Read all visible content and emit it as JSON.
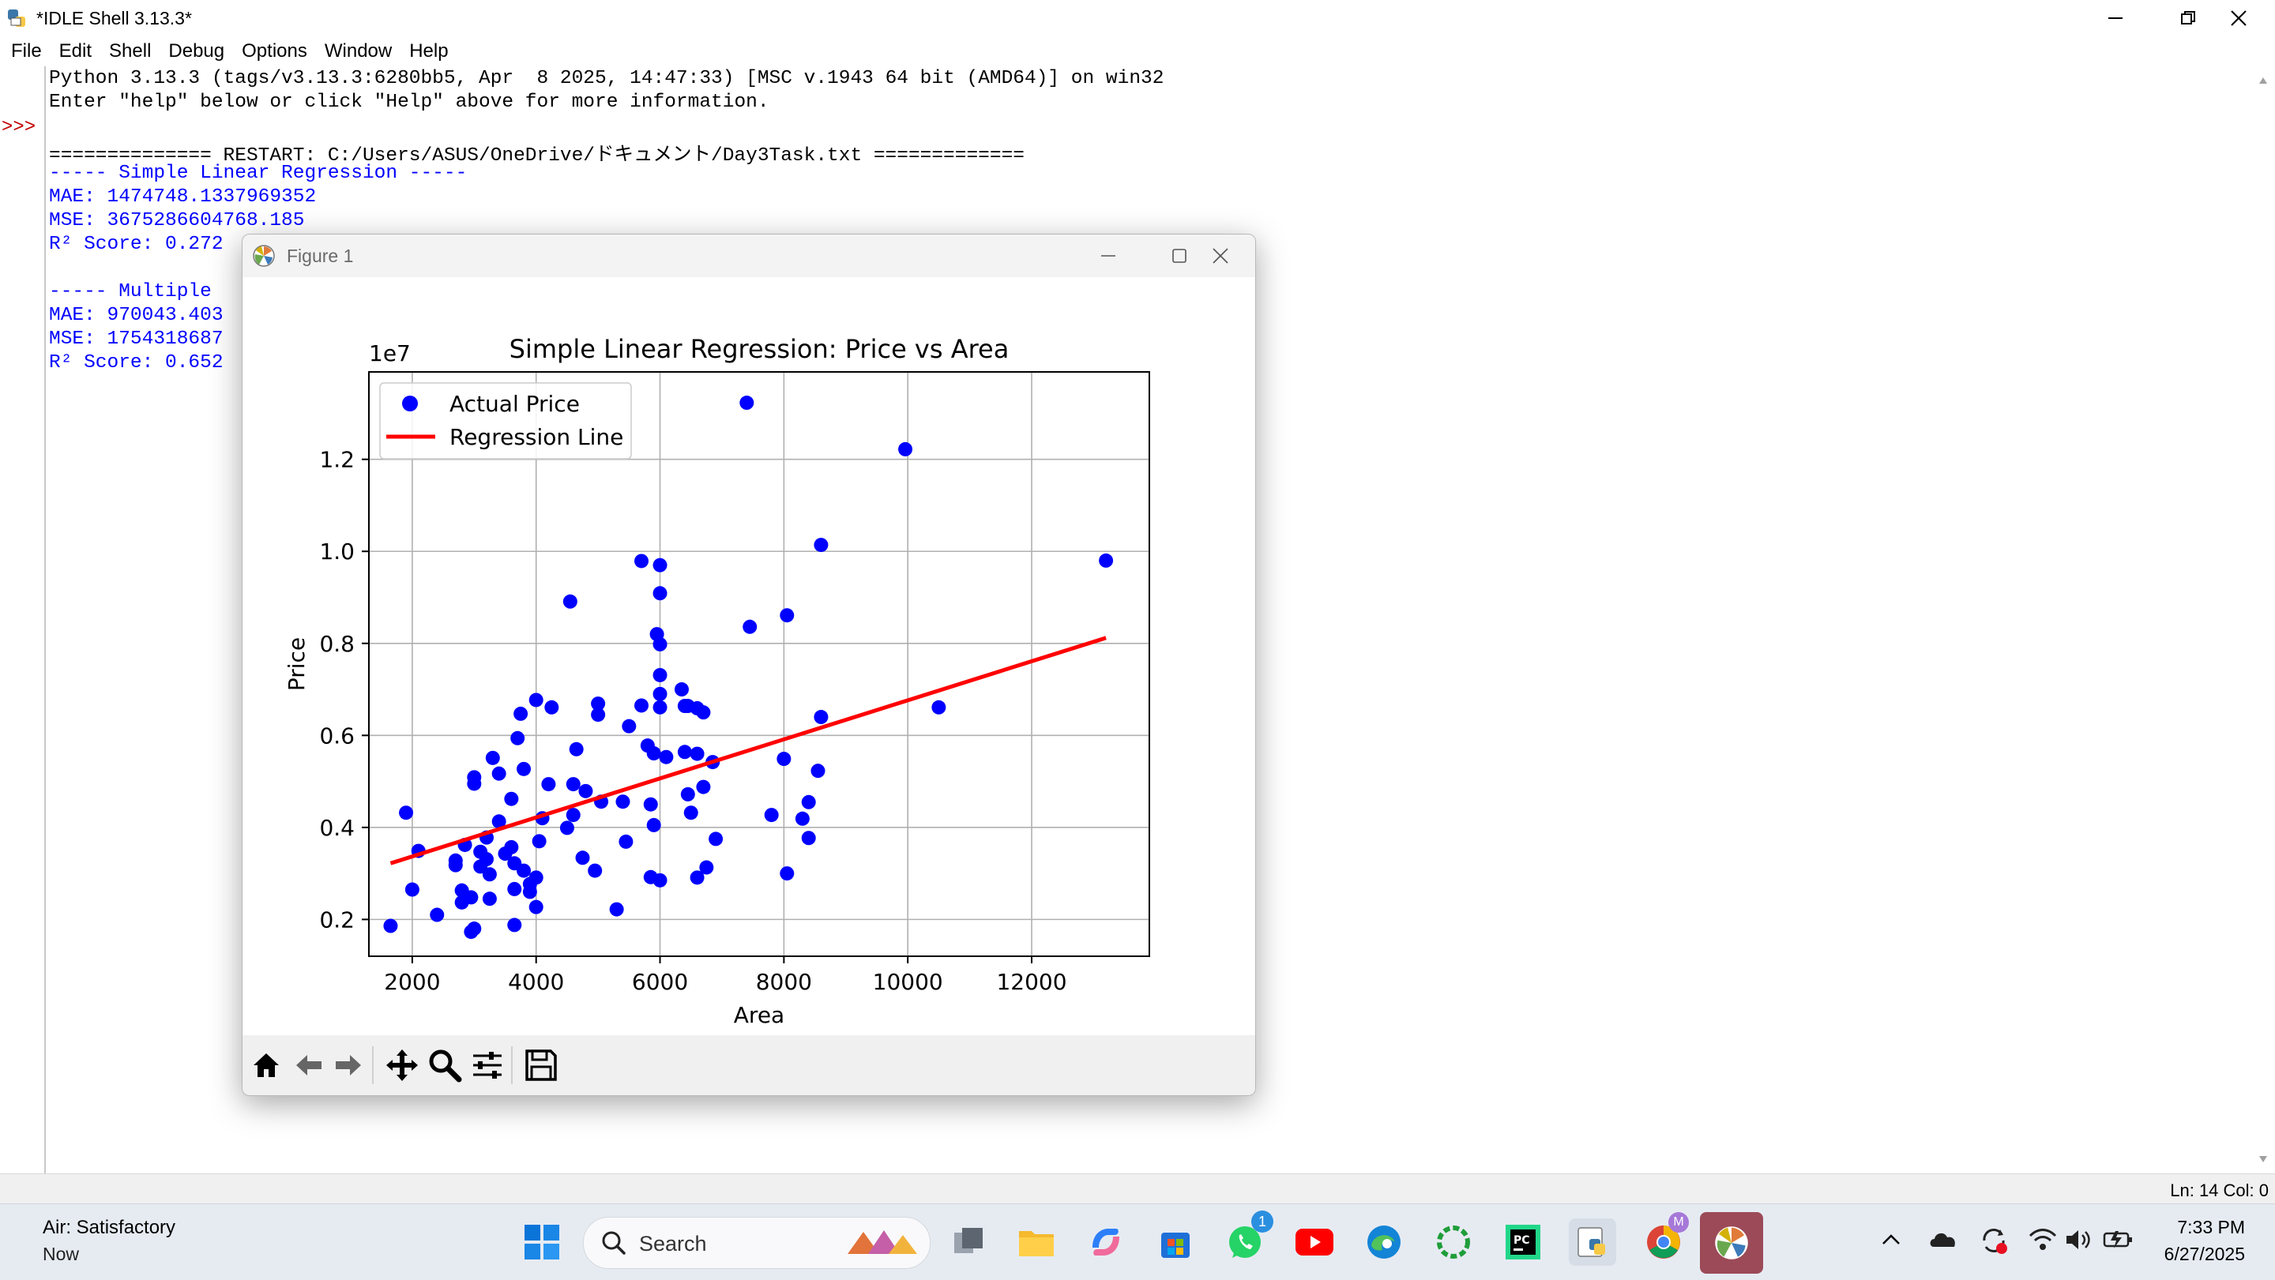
{
  "window": {
    "title": "*IDLE Shell 3.13.3*"
  },
  "menu": [
    "File",
    "Edit",
    "Shell",
    "Debug",
    "Options",
    "Window",
    "Help"
  ],
  "shell": {
    "prompt": ">>>",
    "lines": [
      "Python 3.13.3 (tags/v3.13.3:6280bb5, Apr  8 2025, 14:47:33) [MSC v.1943 64 bit (AMD64)] on win32",
      "Enter \"help\" below or click \"Help\" above for more information.",
      "============== RESTART: C:/Users/ASUS/OneDrive/ドキュメント/Day3Task.txt =============",
      "----- Simple Linear Regression -----",
      "MAE: 1474748.1337969352",
      "MSE: 3675286604768.185",
      "R² Score: 0.272",
      "----- Multiple ",
      "MAE: 970043.403",
      "MSE: 1754318687",
      "R² Score: 0.652"
    ]
  },
  "status": {
    "position": "Ln: 14  Col: 0"
  },
  "figure": {
    "title": "Figure 1",
    "toolbar": [
      "home-icon",
      "back-icon",
      "forward-icon",
      "pan-icon",
      "zoom-icon",
      "configure-subplots-icon",
      "save-icon"
    ]
  },
  "chart_data": {
    "type": "scatter",
    "title": "Simple Linear Regression: Price vs Area",
    "xlabel": "Area",
    "ylabel": "Price",
    "y_offset_label": "1e7",
    "xlim": [
      1300,
      13900
    ],
    "ylim": [
      0.12,
      1.39
    ],
    "xticks": [
      2000,
      4000,
      6000,
      8000,
      10000,
      12000
    ],
    "xtick_labels": [
      "2000",
      "4000",
      "6000",
      "8000",
      "10000",
      "12000"
    ],
    "yticks": [
      0.2,
      0.4,
      0.6,
      0.8,
      1.0,
      1.2
    ],
    "ytick_labels": [
      "0.2",
      "0.4",
      "0.6",
      "0.8",
      "1.0",
      "1.2"
    ],
    "grid": true,
    "legend_position": "upper-left",
    "series": [
      {
        "name": "Actual Price",
        "kind": "scatter",
        "color": "#0000ff",
        "points": [
          [
            1650,
            0.186
          ],
          [
            1900,
            0.432
          ],
          [
            2000,
            0.265
          ],
          [
            2100,
            0.349
          ],
          [
            2400,
            0.21
          ],
          [
            2700,
            0.328
          ],
          [
            2700,
            0.318
          ],
          [
            2800,
            0.263
          ],
          [
            2800,
            0.237
          ],
          [
            2850,
            0.362
          ],
          [
            2950,
            0.173
          ],
          [
            2950,
            0.248
          ],
          [
            3000,
            0.495
          ],
          [
            3000,
            0.509
          ],
          [
            3000,
            0.18
          ],
          [
            3100,
            0.347
          ],
          [
            3100,
            0.315
          ],
          [
            3200,
            0.378
          ],
          [
            3200,
            0.331
          ],
          [
            3250,
            0.298
          ],
          [
            3250,
            0.245
          ],
          [
            3300,
            0.551
          ],
          [
            3400,
            0.517
          ],
          [
            3400,
            0.413
          ],
          [
            3500,
            0.343
          ],
          [
            3600,
            0.462
          ],
          [
            3600,
            0.357
          ],
          [
            3650,
            0.322
          ],
          [
            3650,
            0.266
          ],
          [
            3650,
            0.188
          ],
          [
            3700,
            0.594
          ],
          [
            3750,
            0.647
          ],
          [
            3800,
            0.527
          ],
          [
            3800,
            0.306
          ],
          [
            3900,
            0.277
          ],
          [
            3900,
            0.26
          ],
          [
            4000,
            0.677
          ],
          [
            4000,
            0.291
          ],
          [
            4000,
            0.227
          ],
          [
            4050,
            0.37
          ],
          [
            4100,
            0.42
          ],
          [
            4200,
            0.494
          ],
          [
            4250,
            0.661
          ],
          [
            4500,
            0.399
          ],
          [
            4550,
            0.891
          ],
          [
            4600,
            0.427
          ],
          [
            4600,
            0.494
          ],
          [
            4650,
            0.57
          ],
          [
            4750,
            0.334
          ],
          [
            4800,
            0.479
          ],
          [
            4950,
            0.306
          ],
          [
            5000,
            0.645
          ],
          [
            5000,
            0.669
          ],
          [
            5050,
            0.456
          ],
          [
            5300,
            0.222
          ],
          [
            5400,
            0.456
          ],
          [
            5450,
            0.369
          ],
          [
            5500,
            0.62
          ],
          [
            5700,
            0.665
          ],
          [
            5700,
            0.979
          ],
          [
            5800,
            0.578
          ],
          [
            5850,
            0.292
          ],
          [
            5850,
            0.45
          ],
          [
            5900,
            0.405
          ],
          [
            5900,
            0.561
          ],
          [
            5950,
            0.82
          ],
          [
            6000,
            0.798
          ],
          [
            6000,
            0.97
          ],
          [
            6000,
            0.909
          ],
          [
            6000,
            0.731
          ],
          [
            6000,
            0.69
          ],
          [
            6000,
            0.661
          ],
          [
            6000,
            0.285
          ],
          [
            6100,
            0.553
          ],
          [
            6350,
            0.7
          ],
          [
            6400,
            0.564
          ],
          [
            6400,
            0.664
          ],
          [
            6450,
            0.664
          ],
          [
            6450,
            0.472
          ],
          [
            6500,
            0.432
          ],
          [
            6600,
            0.659
          ],
          [
            6600,
            0.56
          ],
          [
            6600,
            0.291
          ],
          [
            6700,
            0.65
          ],
          [
            6700,
            0.488
          ],
          [
            6750,
            0.313
          ],
          [
            6850,
            0.542
          ],
          [
            6900,
            0.375
          ],
          [
            7400,
            1.323
          ],
          [
            7450,
            0.836
          ],
          [
            7800,
            0.427
          ],
          [
            8000,
            0.549
          ],
          [
            8050,
            0.861
          ],
          [
            8050,
            0.3
          ],
          [
            8300,
            0.419
          ],
          [
            8400,
            0.455
          ],
          [
            8400,
            0.377
          ],
          [
            8550,
            0.523
          ],
          [
            8600,
            1.014
          ],
          [
            8600,
            0.64
          ],
          [
            9960,
            1.222
          ],
          [
            10500,
            0.661
          ],
          [
            13200,
            0.98
          ]
        ]
      },
      {
        "name": "Regression Line",
        "kind": "line",
        "color": "#ff0000",
        "points": [
          [
            1650,
            0.322
          ],
          [
            13200,
            0.812
          ]
        ]
      }
    ]
  },
  "taskbar": {
    "weather_title": "Air: Satisfactory",
    "weather_sub": "Now",
    "search_label": "Search",
    "whatsapp_badge": "1",
    "copilot_badge": "M",
    "time": "7:33 PM",
    "date": "6/27/2025"
  }
}
